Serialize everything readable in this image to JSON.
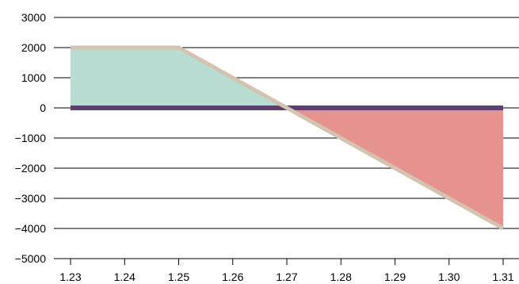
{
  "chart_data": {
    "type": "area",
    "x": [
      1.23,
      1.25,
      1.27,
      1.31
    ],
    "y": [
      2000,
      2000,
      0,
      -4000
    ],
    "xlim": [
      1.23,
      1.31
    ],
    "ylim": [
      -5000,
      3000
    ],
    "x_ticks": [
      "1.23",
      "1.24",
      "1.25",
      "1.26",
      "1.27",
      "1.28",
      "1.29",
      "1.30",
      "1.31"
    ],
    "y_ticks": [
      "3000",
      "2000",
      "1000",
      "0",
      "−1000",
      "−2000",
      "−3000",
      "−4000",
      "−5000"
    ],
    "grid": "horizontal",
    "baseline": 0,
    "title": "",
    "xlabel": "",
    "ylabel": "",
    "colors": {
      "profit_fill": "#b9dcd2",
      "loss_fill": "#e6938f",
      "payoff_line": "#d5c3b1",
      "zero_line": "#5b3f6e",
      "grid": "#000000"
    }
  }
}
